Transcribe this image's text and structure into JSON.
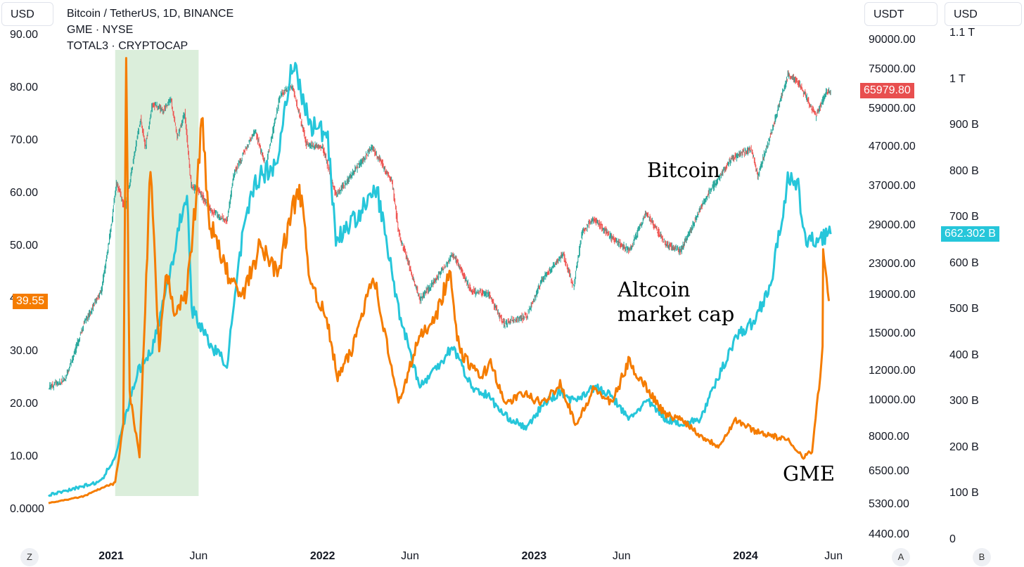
{
  "header": {
    "left_unit": "USD",
    "right_unit_a": "USDT",
    "right_unit_b": "USD",
    "legend": [
      "Bitcoin / TetherUS, 1D, BINANCE",
      "GME · NYSE",
      "TOTAL3 · CRYPTOCAP"
    ]
  },
  "badges": {
    "gme_price": "39.55",
    "btc_price": "65979.80",
    "total3_value": "662.302 B"
  },
  "annotations": {
    "bitcoin": "Bitcoin",
    "altcoin_line1": "Altcoin",
    "altcoin_line2": "market cap",
    "gme": "GME"
  },
  "footer": {
    "z_button": "Z",
    "a_button": "A",
    "b_button": "B"
  },
  "colors": {
    "gme": "#f57c00",
    "total3": "#26c6da",
    "btc_up": "#26a69a",
    "btc_down": "#ef5350",
    "highlight": "#dbeedb",
    "btc_badge": "#e84f4f",
    "gme_badge": "#f57c00",
    "total3_badge": "#26c6da"
  },
  "chart_data": {
    "type": "line",
    "x_ticks": [
      {
        "label": "2021",
        "date": "2021-01-01",
        "bold": true
      },
      {
        "label": "Jun",
        "date": "2021-06-01",
        "bold": false
      },
      {
        "label": "2022",
        "date": "2022-01-01",
        "bold": true
      },
      {
        "label": "Jun",
        "date": "2022-06-01",
        "bold": false
      },
      {
        "label": "2023",
        "date": "2023-01-01",
        "bold": true
      },
      {
        "label": "Jun",
        "date": "2023-06-01",
        "bold": false
      },
      {
        "label": "2024",
        "date": "2024-01-01",
        "bold": true
      },
      {
        "label": "Jun",
        "date": "2024-06-01",
        "bold": false
      }
    ],
    "left_axis": {
      "label": "USD",
      "min": 0,
      "max": 90,
      "ticks": [
        "90.00",
        "80.00",
        "70.00",
        "60.00",
        "50.00",
        "40.00",
        "30.00",
        "20.00",
        "10.00",
        "0.0000"
      ]
    },
    "mid_axis": {
      "label": "USDT",
      "scale": "log",
      "ticks": [
        "90000.00",
        "75000.00",
        "59000.00",
        "47000.00",
        "37000.00",
        "29000.00",
        "23000.00",
        "19000.00",
        "15000.00",
        "12000.00",
        "10000.00",
        "8000.00",
        "6500.00",
        "5300.00",
        "4400.00"
      ]
    },
    "right_axis": {
      "label": "USD",
      "ticks": [
        "1.1 T",
        "1 T",
        "900 B",
        "800 B",
        "700 B",
        "600 B",
        "500 B",
        "400 B",
        "300 B",
        "200 B",
        "100 B",
        "0"
      ]
    },
    "highlight_range": [
      "2021-01-08",
      "2021-06-01"
    ],
    "series": [
      {
        "name": "Bitcoin / TetherUS, 1D, BINANCE",
        "axis": "mid",
        "style": "candles",
        "points": [
          [
            "2020-09-15",
            10800
          ],
          [
            "2020-10-15",
            11500
          ],
          [
            "2020-11-15",
            16000
          ],
          [
            "2020-12-15",
            19500
          ],
          [
            "2021-01-01",
            29000
          ],
          [
            "2021-01-10",
            38000
          ],
          [
            "2021-01-25",
            32000
          ],
          [
            "2021-02-10",
            45000
          ],
          [
            "2021-02-21",
            56000
          ],
          [
            "2021-03-01",
            47000
          ],
          [
            "2021-03-13",
            61000
          ],
          [
            "2021-04-01",
            59000
          ],
          [
            "2021-04-14",
            63000
          ],
          [
            "2021-04-25",
            50000
          ],
          [
            "2021-05-08",
            58000
          ],
          [
            "2021-05-19",
            37000
          ],
          [
            "2021-06-01",
            36000
          ],
          [
            "2021-06-22",
            32000
          ],
          [
            "2021-07-20",
            30000
          ],
          [
            "2021-08-01",
            40000
          ],
          [
            "2021-09-06",
            52000
          ],
          [
            "2021-09-25",
            42000
          ],
          [
            "2021-10-20",
            65000
          ],
          [
            "2021-11-10",
            68000
          ],
          [
            "2021-12-04",
            48000
          ],
          [
            "2022-01-01",
            47000
          ],
          [
            "2022-01-24",
            35000
          ],
          [
            "2022-03-28",
            47000
          ],
          [
            "2022-05-01",
            38000
          ],
          [
            "2022-05-12",
            28000
          ],
          [
            "2022-06-18",
            18500
          ],
          [
            "2022-07-15",
            21000
          ],
          [
            "2022-08-14",
            24500
          ],
          [
            "2022-09-15",
            19500
          ],
          [
            "2022-10-15",
            19200
          ],
          [
            "2022-11-09",
            16000
          ],
          [
            "2022-12-20",
            16800
          ],
          [
            "2023-01-15",
            21000
          ],
          [
            "2023-02-20",
            24500
          ],
          [
            "2023-03-10",
            20000
          ],
          [
            "2023-03-25",
            28000
          ],
          [
            "2023-04-14",
            30500
          ],
          [
            "2023-05-15",
            27000
          ],
          [
            "2023-06-15",
            25000
          ],
          [
            "2023-07-13",
            31500
          ],
          [
            "2023-08-17",
            26000
          ],
          [
            "2023-09-11",
            25000
          ],
          [
            "2023-10-24",
            34500
          ],
          [
            "2023-12-08",
            44000
          ],
          [
            "2024-01-11",
            46500
          ],
          [
            "2024-01-22",
            39500
          ],
          [
            "2024-02-15",
            52000
          ],
          [
            "2024-03-14",
            73000
          ],
          [
            "2024-04-01",
            70000
          ],
          [
            "2024-05-01",
            57000
          ],
          [
            "2024-05-20",
            66000
          ],
          [
            "2024-05-27",
            65979.8
          ]
        ]
      },
      {
        "name": "GME · NYSE",
        "axis": "left",
        "style": "line",
        "points": [
          [
            "2020-09-15",
            1.2
          ],
          [
            "2020-10-15",
            1.8
          ],
          [
            "2020-11-15",
            2.5
          ],
          [
            "2020-12-15",
            4.0
          ],
          [
            "2021-01-08",
            5.0
          ],
          [
            "2021-01-22",
            16
          ],
          [
            "2021-01-27",
            86
          ],
          [
            "2021-02-02",
            22
          ],
          [
            "2021-02-19",
            10
          ],
          [
            "2021-02-25",
            27
          ],
          [
            "2021-03-10",
            65
          ],
          [
            "2021-03-16",
            50
          ],
          [
            "2021-03-25",
            30
          ],
          [
            "2021-04-07",
            45
          ],
          [
            "2021-04-20",
            38
          ],
          [
            "2021-05-10",
            40
          ],
          [
            "2021-05-26",
            57
          ],
          [
            "2021-06-08",
            75
          ],
          [
            "2021-06-18",
            55
          ],
          [
            "2021-07-20",
            45
          ],
          [
            "2021-08-15",
            40
          ],
          [
            "2021-09-15",
            50
          ],
          [
            "2021-10-15",
            45
          ],
          [
            "2021-11-22",
            62
          ],
          [
            "2021-12-08",
            45
          ],
          [
            "2022-01-10",
            35
          ],
          [
            "2022-01-27",
            25
          ],
          [
            "2022-02-20",
            30
          ],
          [
            "2022-03-29",
            45
          ],
          [
            "2022-05-12",
            20
          ],
          [
            "2022-06-15",
            32
          ],
          [
            "2022-07-20",
            38
          ],
          [
            "2022-08-08",
            45
          ],
          [
            "2022-08-25",
            30
          ],
          [
            "2022-09-30",
            25
          ],
          [
            "2022-10-20",
            28
          ],
          [
            "2022-11-10",
            20
          ],
          [
            "2022-12-15",
            22
          ],
          [
            "2023-01-15",
            20
          ],
          [
            "2023-02-15",
            24
          ],
          [
            "2023-03-15",
            16
          ],
          [
            "2023-04-15",
            23
          ],
          [
            "2023-05-15",
            20
          ],
          [
            "2023-06-13",
            28
          ],
          [
            "2023-07-15",
            23
          ],
          [
            "2023-08-15",
            18
          ],
          [
            "2023-09-15",
            17
          ],
          [
            "2023-10-15",
            14
          ],
          [
            "2023-11-15",
            12
          ],
          [
            "2023-12-15",
            17
          ],
          [
            "2024-01-15",
            15
          ],
          [
            "2024-02-15",
            14
          ],
          [
            "2024-03-15",
            13
          ],
          [
            "2024-04-10",
            10
          ],
          [
            "2024-04-25",
            11
          ],
          [
            "2024-05-13",
            30
          ],
          [
            "2024-05-14",
            48
          ],
          [
            "2024-05-24",
            39.55
          ]
        ]
      },
      {
        "name": "TOTAL3 · CRYPTOCAP",
        "axis": "right",
        "style": "line",
        "points": [
          [
            "2020-09-15",
            95
          ],
          [
            "2020-10-15",
            105
          ],
          [
            "2020-11-15",
            115
          ],
          [
            "2020-12-15",
            125
          ],
          [
            "2021-01-08",
            180
          ],
          [
            "2021-02-15",
            360
          ],
          [
            "2021-03-15",
            420
          ],
          [
            "2021-04-16",
            600
          ],
          [
            "2021-05-12",
            760
          ],
          [
            "2021-05-20",
            500
          ],
          [
            "2021-06-22",
            420
          ],
          [
            "2021-07-20",
            380
          ],
          [
            "2021-08-15",
            650
          ],
          [
            "2021-09-07",
            780
          ],
          [
            "2021-10-15",
            820
          ],
          [
            "2021-11-09",
            1040
          ],
          [
            "2021-12-10",
            900
          ],
          [
            "2022-01-10",
            880
          ],
          [
            "2022-01-24",
            650
          ],
          [
            "2022-03-01",
            700
          ],
          [
            "2022-04-05",
            760
          ],
          [
            "2022-05-12",
            500
          ],
          [
            "2022-06-18",
            330
          ],
          [
            "2022-07-15",
            370
          ],
          [
            "2022-08-14",
            420
          ],
          [
            "2022-09-15",
            330
          ],
          [
            "2022-10-15",
            310
          ],
          [
            "2022-11-09",
            270
          ],
          [
            "2022-12-20",
            240
          ],
          [
            "2023-01-15",
            290
          ],
          [
            "2023-02-15",
            320
          ],
          [
            "2023-03-10",
            300
          ],
          [
            "2023-04-15",
            330
          ],
          [
            "2023-05-15",
            310
          ],
          [
            "2023-06-13",
            260
          ],
          [
            "2023-07-15",
            300
          ],
          [
            "2023-08-17",
            260
          ],
          [
            "2023-09-15",
            250
          ],
          [
            "2023-10-15",
            260
          ],
          [
            "2023-11-15",
            350
          ],
          [
            "2023-12-15",
            440
          ],
          [
            "2024-01-15",
            470
          ],
          [
            "2024-02-15",
            560
          ],
          [
            "2024-03-14",
            780
          ],
          [
            "2024-04-01",
            760
          ],
          [
            "2024-04-15",
            640
          ],
          [
            "2024-05-15",
            660
          ],
          [
            "2024-05-27",
            662.302
          ]
        ]
      }
    ]
  }
}
